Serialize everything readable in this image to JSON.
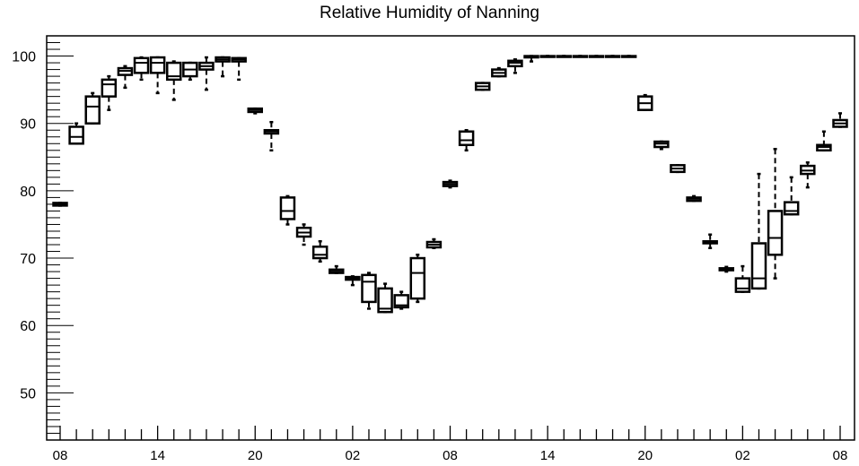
{
  "chart_data": {
    "type": "box",
    "title": "Relative Humidity of Nanning",
    "xlabel": "",
    "ylabel": "",
    "ylim": [
      43,
      103
    ],
    "yticks": [
      50,
      60,
      70,
      80,
      90,
      100
    ],
    "xtick_labels": [
      "08",
      "14",
      "20",
      "02",
      "08",
      "14",
      "20",
      "02",
      "08"
    ],
    "x_start_hour": 8,
    "x_end_hour": 56,
    "grid": false,
    "boxes": [
      {
        "hour": 8,
        "min": 77.8,
        "q1": 77.8,
        "median": 78.0,
        "q3": 78.2,
        "max": 78.2
      },
      {
        "hour": 9,
        "min": 87.0,
        "q1": 87.0,
        "median": 88.0,
        "q3": 89.5,
        "max": 90.0
      },
      {
        "hour": 10,
        "min": 90.0,
        "q1": 90.0,
        "median": 92.5,
        "q3": 94.0,
        "max": 94.5
      },
      {
        "hour": 11,
        "min": 92.0,
        "q1": 94.0,
        "median": 95.8,
        "q3": 96.5,
        "max": 97.0
      },
      {
        "hour": 12,
        "min": 95.3,
        "q1": 97.2,
        "median": 97.8,
        "q3": 98.2,
        "max": 98.5
      },
      {
        "hour": 13,
        "min": 96.5,
        "q1": 97.5,
        "median": 99.0,
        "q3": 99.7,
        "max": 99.8
      },
      {
        "hour": 14,
        "min": 94.5,
        "q1": 97.5,
        "median": 99.0,
        "q3": 99.8,
        "max": 99.8
      },
      {
        "hour": 15,
        "min": 93.5,
        "q1": 96.5,
        "median": 97.0,
        "q3": 99.0,
        "max": 99.2
      },
      {
        "hour": 16,
        "min": 96.5,
        "q1": 97.0,
        "median": 98.0,
        "q3": 99.0,
        "max": 99.0
      },
      {
        "hour": 17,
        "min": 95.0,
        "q1": 98.0,
        "median": 98.5,
        "q3": 99.0,
        "max": 99.8
      },
      {
        "hour": 18,
        "min": 97.0,
        "q1": 99.2,
        "median": 99.5,
        "q3": 99.8,
        "max": 99.8
      },
      {
        "hour": 19,
        "min": 96.5,
        "q1": 99.2,
        "median": 99.5,
        "q3": 99.7,
        "max": 99.7
      },
      {
        "hour": 20,
        "min": 91.5,
        "q1": 91.7,
        "median": 92.0,
        "q3": 92.2,
        "max": 92.2
      },
      {
        "hour": 21,
        "min": 86.0,
        "q1": 88.5,
        "median": 88.8,
        "q3": 89.0,
        "max": 90.2
      },
      {
        "hour": 22,
        "min": 75.0,
        "q1": 75.8,
        "median": 77.0,
        "q3": 79.0,
        "max": 79.2
      },
      {
        "hour": 23,
        "min": 72.0,
        "q1": 73.2,
        "median": 73.8,
        "q3": 74.5,
        "max": 75.0
      },
      {
        "hour": 0,
        "min": 69.5,
        "q1": 70.0,
        "median": 70.5,
        "q3": 71.7,
        "max": 72.5
      },
      {
        "hour": 1,
        "min": 67.8,
        "q1": 67.8,
        "median": 68.0,
        "q3": 68.3,
        "max": 68.8
      },
      {
        "hour": 2,
        "min": 66.0,
        "q1": 66.8,
        "median": 67.0,
        "q3": 67.2,
        "max": 67.3
      },
      {
        "hour": 3,
        "min": 62.5,
        "q1": 63.5,
        "median": 66.5,
        "q3": 67.5,
        "max": 67.8
      },
      {
        "hour": 4,
        "min": 62.0,
        "q1": 62.0,
        "median": 62.5,
        "q3": 65.5,
        "max": 66.2
      },
      {
        "hour": 5,
        "min": 62.5,
        "q1": 62.7,
        "median": 63.0,
        "q3": 64.5,
        "max": 65.0
      },
      {
        "hour": 6,
        "min": 63.5,
        "q1": 64.0,
        "median": 67.8,
        "q3": 70.0,
        "max": 70.5
      },
      {
        "hour": 7,
        "min": 71.5,
        "q1": 71.6,
        "median": 72.0,
        "q3": 72.4,
        "max": 72.8
      },
      {
        "hour": 8,
        "min": 80.5,
        "q1": 80.7,
        "median": 81.0,
        "q3": 81.3,
        "max": 81.5
      },
      {
        "hour": 9,
        "min": 86.0,
        "q1": 86.8,
        "median": 87.5,
        "q3": 88.8,
        "max": 89.0
      },
      {
        "hour": 10,
        "min": 95.0,
        "q1": 95.0,
        "median": 95.5,
        "q3": 96.0,
        "max": 96.0
      },
      {
        "hour": 11,
        "min": 97.0,
        "q1": 97.0,
        "median": 97.5,
        "q3": 98.0,
        "max": 98.2
      },
      {
        "hour": 12,
        "min": 97.5,
        "q1": 98.5,
        "median": 99.0,
        "q3": 99.3,
        "max": 99.5
      },
      {
        "hour": 13,
        "min": 99.2,
        "q1": 99.8,
        "median": 100.0,
        "q3": 100.0,
        "max": 100.0
      },
      {
        "hour": 14,
        "min": 100.0,
        "q1": 100.0,
        "median": 100.0,
        "q3": 100.0,
        "max": 100.0
      },
      {
        "hour": 15,
        "min": 100.0,
        "q1": 100.0,
        "median": 100.0,
        "q3": 100.0,
        "max": 100.0
      },
      {
        "hour": 16,
        "min": 100.0,
        "q1": 100.0,
        "median": 100.0,
        "q3": 100.0,
        "max": 100.0
      },
      {
        "hour": 17,
        "min": 100.0,
        "q1": 100.0,
        "median": 100.0,
        "q3": 100.0,
        "max": 100.0
      },
      {
        "hour": 18,
        "min": 100.0,
        "q1": 100.0,
        "median": 100.0,
        "q3": 100.0,
        "max": 100.0
      },
      {
        "hour": 19,
        "min": 100.0,
        "q1": 100.0,
        "median": 100.0,
        "q3": 100.0,
        "max": 100.0
      },
      {
        "hour": 20,
        "min": 92.0,
        "q1": 92.0,
        "median": 93.0,
        "q3": 94.0,
        "max": 94.2
      },
      {
        "hour": 21,
        "min": 86.2,
        "q1": 86.5,
        "median": 87.0,
        "q3": 87.3,
        "max": 87.3
      },
      {
        "hour": 22,
        "min": 82.8,
        "q1": 82.8,
        "median": 83.3,
        "q3": 83.8,
        "max": 83.8
      },
      {
        "hour": 23,
        "min": 78.5,
        "q1": 78.5,
        "median": 78.8,
        "q3": 79.0,
        "max": 79.2
      },
      {
        "hour": 0,
        "min": 71.5,
        "q1": 72.2,
        "median": 72.3,
        "q3": 72.5,
        "max": 73.5
      },
      {
        "hour": 1,
        "min": 68.0,
        "q1": 68.2,
        "median": 68.3,
        "q3": 68.5,
        "max": 68.7
      },
      {
        "hour": 2,
        "min": 65.0,
        "q1": 65.0,
        "median": 65.5,
        "q3": 67.0,
        "max": 68.8
      },
      {
        "hour": 3,
        "min": 65.5,
        "q1": 65.5,
        "median": 67.0,
        "q3": 72.2,
        "max": 82.5
      },
      {
        "hour": 4,
        "min": 67.0,
        "q1": 70.5,
        "median": 73.0,
        "q3": 77.0,
        "max": 86.2
      },
      {
        "hour": 5,
        "min": 76.5,
        "q1": 76.5,
        "median": 77.0,
        "q3": 78.3,
        "max": 82.0
      },
      {
        "hour": 6,
        "min": 80.5,
        "q1": 82.5,
        "median": 83.0,
        "q3": 83.7,
        "max": 84.2
      },
      {
        "hour": 7,
        "min": 86.0,
        "q1": 86.0,
        "median": 86.5,
        "q3": 86.8,
        "max": 88.8
      },
      {
        "hour": 8,
        "min": 89.5,
        "q1": 89.5,
        "median": 90.0,
        "q3": 90.5,
        "max": 91.5
      }
    ]
  }
}
